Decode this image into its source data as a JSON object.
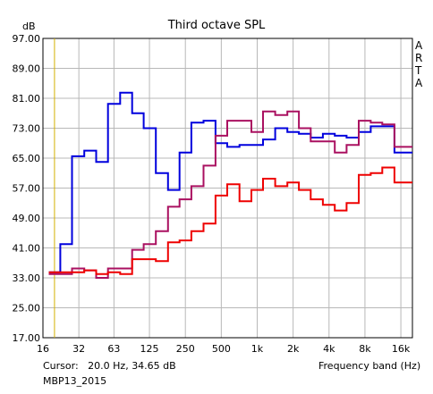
{
  "chart_data": {
    "type": "line",
    "title": "Third octave SPL",
    "ylabel": "dB",
    "xlabel": "Frequency band (Hz)",
    "ylim": [
      17,
      97
    ],
    "xlim": [
      16,
      20000
    ],
    "xscale": "log",
    "grid": true,
    "yticks": [
      "97.00",
      "89.00",
      "81.00",
      "73.00",
      "65.00",
      "57.00",
      "49.00",
      "41.00",
      "33.00",
      "25.00",
      "17.00"
    ],
    "xticks": [
      "16",
      "32",
      "63",
      "125",
      "250",
      "500",
      "1k",
      "2k",
      "4k",
      "8k",
      "16k"
    ],
    "brand": [
      "A",
      "R",
      "T",
      "A"
    ],
    "cursor_text": "Cursor:   20.0 Hz, 34.65 dB",
    "cursor_x": 20.0,
    "footer": "MBP13_2015",
    "band_centers": [
      20,
      25,
      31.5,
      40,
      50,
      63,
      80,
      100,
      125,
      160,
      200,
      250,
      315,
      400,
      500,
      630,
      800,
      1000,
      1250,
      1600,
      2000,
      2500,
      3150,
      4000,
      5000,
      6300,
      8000,
      10000,
      12500,
      16000,
      20000
    ],
    "series": [
      {
        "color": "#0000dd",
        "values": [
          34.5,
          42,
          65.5,
          67,
          64,
          79.5,
          82.5,
          77,
          73,
          61,
          56.5,
          66.5,
          74.5,
          75,
          69,
          68,
          68.5,
          68.5,
          70,
          73,
          72,
          71.5,
          70.5,
          71.5,
          71,
          70.5,
          72,
          73.5,
          73.5,
          66.5,
          66.5
        ]
      },
      {
        "color": "#aa1060",
        "values": [
          34,
          34,
          35.5,
          35,
          33,
          35.5,
          35.5,
          40.5,
          42,
          45.5,
          52,
          54,
          57.5,
          63,
          71,
          75,
          75,
          72,
          77.5,
          76.5,
          77.5,
          73,
          69.5,
          69.5,
          66.5,
          68.5,
          75,
          74.5,
          74,
          68,
          68
        ]
      },
      {
        "color": "#ee0000",
        "values": [
          34.5,
          34.5,
          34.5,
          35,
          34,
          34.5,
          34,
          38,
          38,
          37.5,
          42.5,
          43,
          45.5,
          47.5,
          55,
          58,
          53.5,
          56.5,
          59.5,
          57.5,
          58.5,
          56.5,
          54,
          52.5,
          51,
          53,
          60.5,
          61,
          62.5,
          58.5,
          58.5
        ]
      }
    ]
  }
}
